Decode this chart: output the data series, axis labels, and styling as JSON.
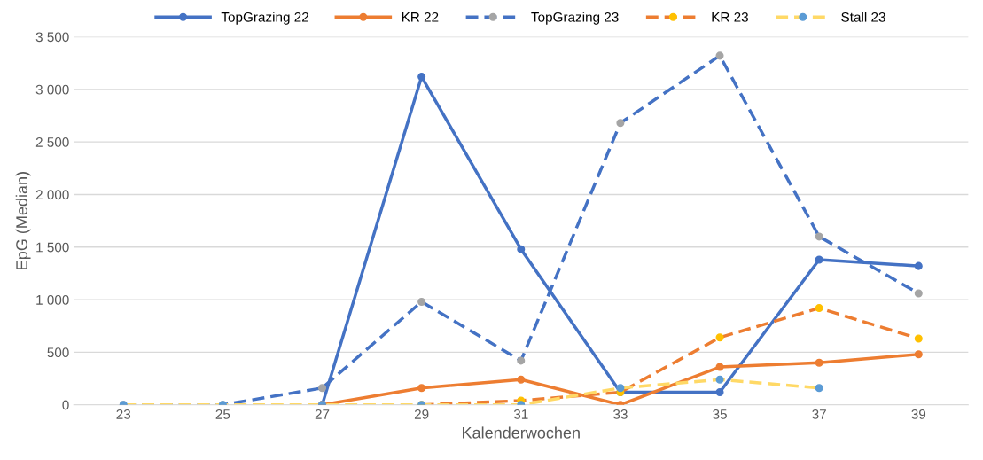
{
  "chart_data": {
    "type": "line",
    "xlabel": "Kalenderwochen",
    "ylabel": "EpG (Median)",
    "categories": [
      "23",
      "25",
      "27",
      "29",
      "31",
      "33",
      "35",
      "37",
      "39"
    ],
    "series": [
      {
        "name": "TopGrazing 22",
        "color": "#4472c4",
        "line_style": "solid",
        "values": [
          null,
          null,
          0,
          3120,
          1480,
          120,
          120,
          1380,
          1320
        ]
      },
      {
        "name": "KR 22",
        "color": "#ed7d31",
        "line_style": "solid",
        "values": [
          null,
          null,
          0,
          160,
          240,
          0,
          360,
          400,
          480
        ]
      },
      {
        "name": "TopGrazing 23",
        "color": "#4472c4",
        "colors": [
          "#a5a5a5",
          "#a5a5a5",
          "#a5a5a5",
          "#a5a5a5",
          "#a5a5a5",
          "#a5a5a5",
          "#a5a5a5",
          "#a5a5a5",
          "#a5a5a5"
        ],
        "line_style": "dashed",
        "values": [
          0,
          0,
          160,
          980,
          420,
          2680,
          3320,
          1600,
          1060
        ]
      },
      {
        "name": "KR 23",
        "color": "#ed7d31",
        "colors": [
          "#ffc000",
          "#ffc000",
          "#ffc000",
          "#ffc000",
          "#ffc000",
          "#ffc000",
          "#ffc000",
          "#ffc000",
          "#ffc000"
        ],
        "line_style": "dashed",
        "values": [
          null,
          null,
          null,
          0,
          40,
          120,
          640,
          920,
          630
        ]
      },
      {
        "name": "Stall 23",
        "color": "#ffd966",
        "colors": [
          "#5b9bd5",
          "#5b9bd5",
          "#5b9bd5",
          "#5b9bd5",
          "#5b9bd5",
          "#5b9bd5",
          "#5b9bd5",
          "#5b9bd5",
          "#5b9bd5"
        ],
        "line_style": "dashed",
        "values": [
          0,
          0,
          0,
          0,
          0,
          160,
          240,
          160,
          null
        ]
      }
    ],
    "ylim": [
      0,
      3500
    ],
    "yticks": [
      0,
      500,
      {
        "value": 1000,
        "label": "1 000"
      },
      {
        "value": 1500,
        "label": "1 500"
      },
      {
        "value": 2000,
        "label": "2 000"
      },
      {
        "value": 2500,
        "label": "2 500"
      },
      {
        "value": 3000,
        "label": "3 000"
      },
      {
        "value": 3500,
        "label": "3 500"
      }
    ],
    "grid": "y",
    "legend": "top",
    "marker": "circle"
  }
}
